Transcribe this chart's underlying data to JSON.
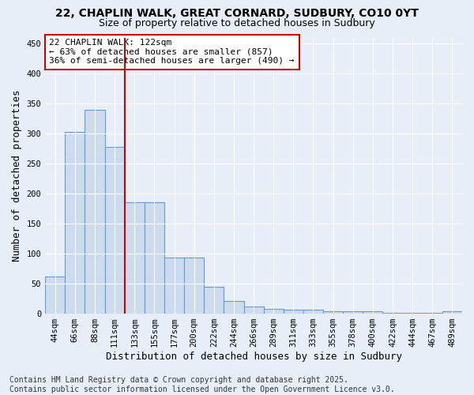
{
  "title_line1": "22, CHAPLIN WALK, GREAT CORNARD, SUDBURY, CO10 0YT",
  "title_line2": "Size of property relative to detached houses in Sudbury",
  "xlabel": "Distribution of detached houses by size in Sudbury",
  "ylabel": "Number of detached properties",
  "categories": [
    "44sqm",
    "66sqm",
    "88sqm",
    "111sqm",
    "133sqm",
    "155sqm",
    "177sqm",
    "200sqm",
    "222sqm",
    "244sqm",
    "266sqm",
    "289sqm",
    "311sqm",
    "333sqm",
    "355sqm",
    "378sqm",
    "400sqm",
    "422sqm",
    "444sqm",
    "467sqm",
    "489sqm"
  ],
  "values": [
    62,
    302,
    340,
    278,
    185,
    185,
    93,
    93,
    44,
    21,
    11,
    7,
    6,
    6,
    4,
    4,
    4,
    1,
    1,
    1,
    3
  ],
  "bar_color": "#ccdcee",
  "bar_edge_color": "#6699cc",
  "vline_x": 3.5,
  "annotation_text": "22 CHAPLIN WALK: 122sqm\n← 63% of detached houses are smaller (857)\n36% of semi-detached houses are larger (490) →",
  "annotation_box_color": "#ffffff",
  "annotation_box_edge_color": "#cc0000",
  "vline_color": "#cc0000",
  "ylim": [
    0,
    460
  ],
  "yticks": [
    0,
    50,
    100,
    150,
    200,
    250,
    300,
    350,
    400,
    450
  ],
  "footer_line1": "Contains HM Land Registry data © Crown copyright and database right 2025.",
  "footer_line2": "Contains public sector information licensed under the Open Government Licence v3.0.",
  "background_color": "#e8eef8",
  "plot_bg_color": "#e8eef8",
  "title_fontsize": 10,
  "subtitle_fontsize": 9,
  "tick_fontsize": 7.5,
  "label_fontsize": 9,
  "footer_fontsize": 7
}
